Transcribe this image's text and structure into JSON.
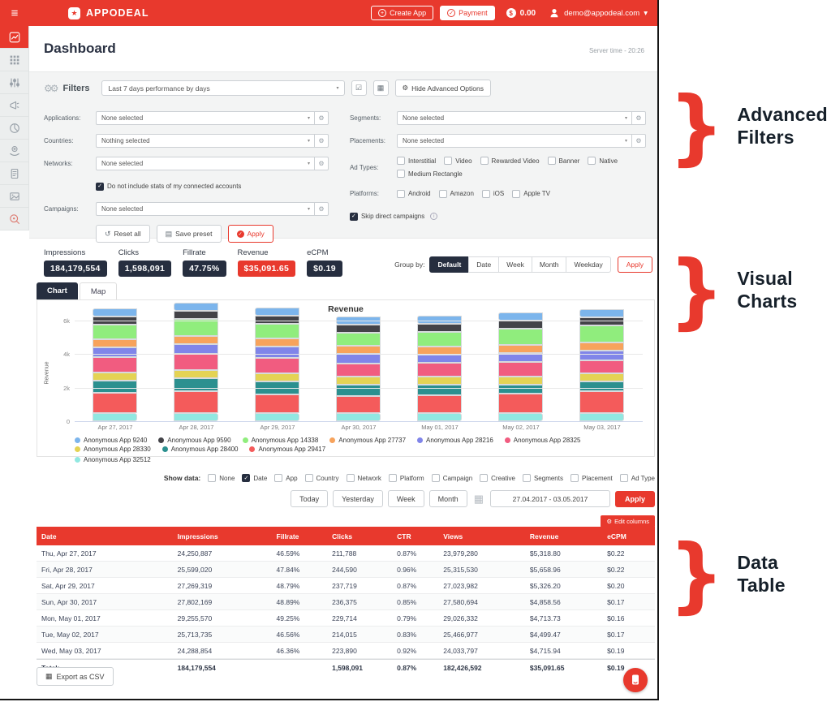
{
  "topbar": {
    "brand": "APPODEAL",
    "create_app": "Create App",
    "payment": "Payment",
    "balance": "0.00",
    "account": "demo@appodeal.com"
  },
  "sidebar": {
    "icons": [
      "line-chart",
      "apps-grid",
      "sliders",
      "megaphone",
      "pie-chart",
      "payouts",
      "document",
      "creatives",
      "search-target"
    ]
  },
  "header": {
    "title": "Dashboard",
    "server_time": "Server time - 20:26"
  },
  "filters": {
    "label": "Filters",
    "preset": "Last 7 days performance by days",
    "hide_advanced": "Hide Advanced Options",
    "applications": {
      "label": "Applications:",
      "value": "None selected"
    },
    "countries": {
      "label": "Countries:",
      "value": "Nothing selected"
    },
    "networks": {
      "label": "Networks:",
      "value": "None selected"
    },
    "campaigns": {
      "label": "Campaigns:",
      "value": "None selected"
    },
    "segments": {
      "label": "Segments:",
      "value": "None selected"
    },
    "placements": {
      "label": "Placements:",
      "value": "None selected"
    },
    "connected_accounts": {
      "label": "Do not include stats of my connected accounts",
      "checked": true
    },
    "skip_direct": {
      "label": "Skip direct campaigns",
      "checked": true
    },
    "ad_types": {
      "label": "Ad Types:",
      "options": [
        {
          "label": "Interstitial",
          "checked": false
        },
        {
          "label": "Video",
          "checked": false
        },
        {
          "label": "Rewarded Video",
          "checked": false
        },
        {
          "label": "Banner",
          "checked": false
        },
        {
          "label": "Native",
          "checked": false
        },
        {
          "label": "Medium Rectangle",
          "checked": false
        }
      ]
    },
    "platforms": {
      "label": "Platforms:",
      "options": [
        {
          "label": "Android",
          "checked": false
        },
        {
          "label": "Amazon",
          "checked": false
        },
        {
          "label": "iOS",
          "checked": false
        },
        {
          "label": "Apple TV",
          "checked": false
        }
      ]
    },
    "buttons": {
      "reset": "Reset all",
      "save": "Save preset",
      "apply": "Apply"
    }
  },
  "stats": [
    {
      "label": "Impressions",
      "value": "184,179,554",
      "variant": "dark"
    },
    {
      "label": "Clicks",
      "value": "1,598,091",
      "variant": "dark"
    },
    {
      "label": "Fillrate",
      "value": "47.75%",
      "variant": "dark"
    },
    {
      "label": "Revenue",
      "value": "$35,091.65",
      "variant": "red"
    },
    {
      "label": "eCPM",
      "value": "$0.19",
      "variant": "dark"
    }
  ],
  "group_by": {
    "label": "Group by:",
    "options": [
      {
        "label": "Default",
        "active": true
      },
      {
        "label": "Date",
        "active": false
      },
      {
        "label": "Week",
        "active": false
      },
      {
        "label": "Month",
        "active": false
      },
      {
        "label": "Weekday",
        "active": false
      }
    ],
    "apply": "Apply"
  },
  "tabs": [
    {
      "label": "Chart",
      "active": true
    },
    {
      "label": "Map",
      "active": false
    }
  ],
  "chart_data": {
    "type": "bar",
    "stacked": true,
    "title": "Revenue",
    "ylabel": "Revenue",
    "ylim": [
      0,
      6000
    ],
    "yticks": [
      {
        "label": "6k",
        "value": 6000
      },
      {
        "label": "4k",
        "value": 4000
      },
      {
        "label": "2k",
        "value": 2000
      },
      {
        "label": "0",
        "value": 0
      }
    ],
    "categories": [
      "Apr 27, 2017",
      "Apr 28, 2017",
      "Apr 29, 2017",
      "Apr 30, 2017",
      "May 01, 2017",
      "May 02, 2017",
      "May 03, 2017"
    ],
    "series": [
      {
        "name": "Anonymous App 9240",
        "color": "#7cb5ec",
        "values": [
          130,
          130,
          120,
          100,
          80,
          80,
          80
        ]
      },
      {
        "name": "Anonymous App 9590",
        "color": "#434348",
        "values": [
          220,
          280,
          250,
          180,
          150,
          220,
          200
        ]
      },
      {
        "name": "Anonymous App 14338",
        "color": "#90ed7d",
        "values": [
          850,
          1000,
          850,
          750,
          900,
          950,
          1000
        ]
      },
      {
        "name": "Anonymous App 27737",
        "color": "#f7a35c",
        "values": [
          80,
          80,
          80,
          60,
          50,
          50,
          60
        ]
      },
      {
        "name": "Anonymous App 28216",
        "color": "#8085e9",
        "values": [
          600,
          600,
          700,
          600,
          450,
          550,
          600
        ]
      },
      {
        "name": "Anonymous App 28325",
        "color": "#f15c80",
        "values": [
          900,
          950,
          900,
          750,
          800,
          850,
          750
        ]
      },
      {
        "name": "Anonymous App 28330",
        "color": "#e4d354",
        "values": [
          100,
          100,
          100,
          120,
          120,
          80,
          80
        ]
      },
      {
        "name": "Anonymous App 28400",
        "color": "#2b908f",
        "values": [
          750,
          800,
          800,
          700,
          650,
          550,
          600
        ]
      },
      {
        "name": "Anonymous App 29417",
        "color": "#f45b5b",
        "values": [
          1200,
          1300,
          1100,
          1000,
          1050,
          1150,
          1300
        ]
      },
      {
        "name": "Anonymous App 32512",
        "color": "#91e8e1",
        "values": [
          450,
          400,
          450,
          500,
          450,
          20,
          20
        ]
      }
    ],
    "legend_position": "bottom",
    "note": "daily totals match Revenue column of table; first series renders topmost in each stack"
  },
  "show_data": {
    "label": "Show data:",
    "options": [
      {
        "label": "None",
        "checked": false
      },
      {
        "label": "Date",
        "checked": true
      },
      {
        "label": "App",
        "checked": false
      },
      {
        "label": "Country",
        "checked": false
      },
      {
        "label": "Network",
        "checked": false
      },
      {
        "label": "Platform",
        "checked": false
      },
      {
        "label": "Campaign",
        "checked": false
      },
      {
        "label": "Creative",
        "checked": false
      },
      {
        "label": "Segments",
        "checked": false
      },
      {
        "label": "Placement",
        "checked": false
      },
      {
        "label": "Ad Type",
        "checked": false
      }
    ]
  },
  "date_controls": {
    "quick": [
      "Today",
      "Yesterday",
      "Week",
      "Month"
    ],
    "range": "27.04.2017 - 03.05.2017",
    "apply": "Apply"
  },
  "table": {
    "edit_columns": "Edit columns",
    "headers": [
      "Date",
      "Impressions",
      "Fillrate",
      "Clicks",
      "CTR",
      "Views",
      "Revenue",
      "eCPM"
    ],
    "rows": [
      [
        "Thu, Apr 27, 2017",
        "24,250,887",
        "46.59%",
        "211,788",
        "0.87%",
        "23,979,280",
        "$5,318.80",
        "$0.22"
      ],
      [
        "Fri, Apr 28, 2017",
        "25,599,020",
        "47.84%",
        "244,590",
        "0.96%",
        "25,315,530",
        "$5,658.96",
        "$0.22"
      ],
      [
        "Sat, Apr 29, 2017",
        "27,269,319",
        "48.79%",
        "237,719",
        "0.87%",
        "27,023,982",
        "$5,326.20",
        "$0.20"
      ],
      [
        "Sun, Apr 30, 2017",
        "27,802,169",
        "48.89%",
        "236,375",
        "0.85%",
        "27,580,694",
        "$4,858.56",
        "$0.17"
      ],
      [
        "Mon, May 01, 2017",
        "29,255,570",
        "49.25%",
        "229,714",
        "0.79%",
        "29,026,332",
        "$4,713.73",
        "$0.16"
      ],
      [
        "Tue, May 02, 2017",
        "25,713,735",
        "46.56%",
        "214,015",
        "0.83%",
        "25,466,977",
        "$4,499.47",
        "$0.17"
      ],
      [
        "Wed, May 03, 2017",
        "24,288,854",
        "46.36%",
        "223,890",
        "0.92%",
        "24,033,797",
        "$4,715.94",
        "$0.19"
      ]
    ],
    "total": [
      "Total:",
      "184,179,554",
      "",
      "1,598,091",
      "0.87%",
      "182,426,592",
      "$35,091.65",
      "$0.19"
    ]
  },
  "footer": {
    "export_csv": "Export as CSV"
  },
  "annotations": [
    {
      "text": "Advanced\nFilters"
    },
    {
      "text": "Visual\nCharts"
    },
    {
      "text": "Data\nTable"
    }
  ],
  "colors": {
    "accent_red": "#e8392d",
    "dark_navy": "#262e3f"
  },
  "icons": {
    "burger": "≡",
    "star": "★",
    "gear": "⚙",
    "gears": "⚙⚙",
    "calendar": "▦",
    "caret": "▾",
    "check": "✓",
    "plus": "+",
    "dollar": "$",
    "reset": "↺",
    "save": "▤",
    "export": "▦",
    "menu_check": "☑",
    "info": "i",
    "brace": "}"
  }
}
